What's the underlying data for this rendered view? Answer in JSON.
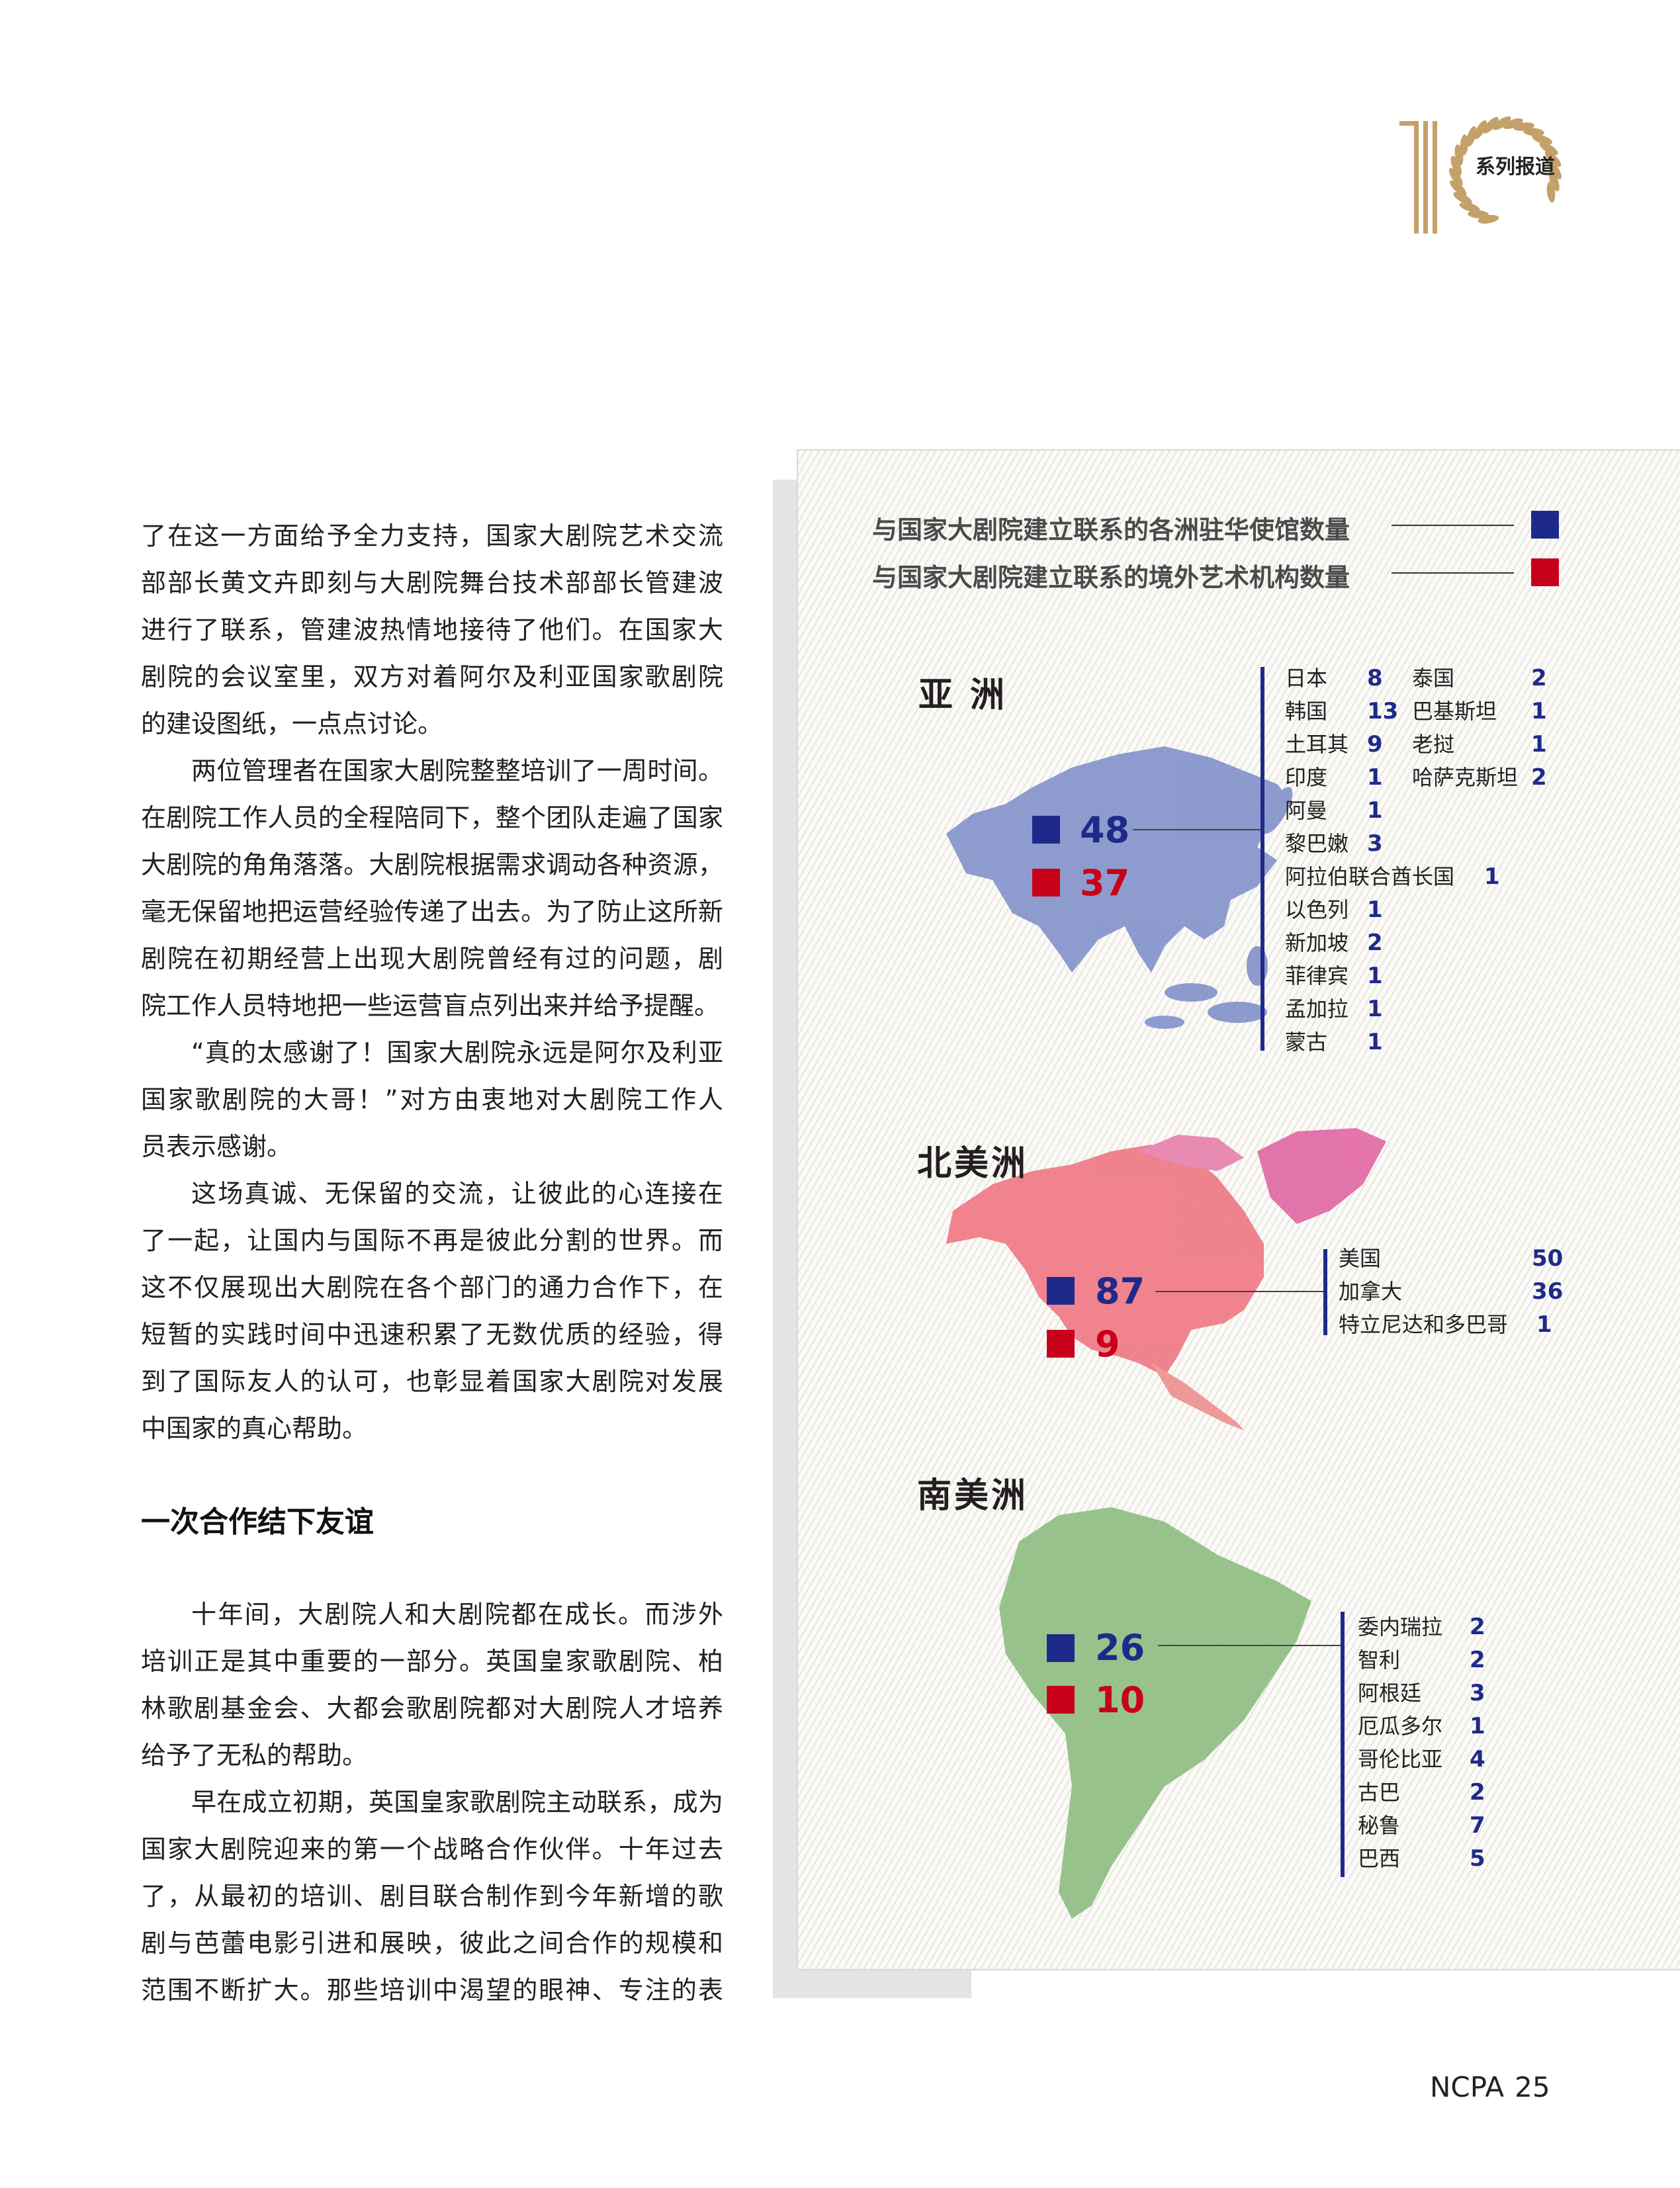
{
  "logo": {
    "text": "系列报道",
    "color": "#c4a06a"
  },
  "article": {
    "block_a": [
      {
        "indent": false,
        "lines": [
          "了在这一方面给予全力支持，国家大剧院艺术交流",
          "部部长黄文卉即刻与大剧院舞台技术部部长管建波",
          "进行了联系，管建波热情地接待了他们。在国家大",
          "剧院的会议室里，双方对着阿尔及利亚国家歌剧院",
          "的建设图纸，一点点讨论。"
        ]
      },
      {
        "indent": true,
        "lines": [
          "两位管理者在国家大剧院整整培训了一周时间。",
          "在剧院工作人员的全程陪同下，整个团队走遍了国家",
          "大剧院的角角落落。大剧院根据需求调动各种资源，",
          "毫无保留地把运营经验传递了出去。为了防止这所新",
          "剧院在初期经营上出现大剧院曾经有过的问题，剧",
          "院工作人员特地把一些运营盲点列出来并给予提醒。"
        ]
      },
      {
        "indent": true,
        "lines": [
          "“真的太感谢了！国家大剧院永远是阿尔及利亚",
          "国家歌剧院的大哥！”对方由衷地对大剧院工作人",
          "员表示感谢。"
        ]
      },
      {
        "indent": true,
        "lines": [
          "这场真诚、无保留的交流，让彼此的心连接在",
          "了一起，让国内与国际不再是彼此分割的世界。而",
          "这不仅展现出大剧院在各个部门的通力合作下，在",
          "短暂的实践时间中迅速积累了无数优质的经验，得",
          "到了国际友人的认可，也彰显着国家大剧院对发展",
          "中国家的真心帮助。"
        ]
      }
    ],
    "heading": "一次合作结下友谊",
    "block_b": [
      {
        "indent": true,
        "lines": [
          "十年间，大剧院人和大剧院都在成长。而涉外",
          "培训正是其中重要的一部分。英国皇家歌剧院、柏",
          "林歌剧基金会、大都会歌剧院都对大剧院人才培养",
          "给予了无私的帮助。"
        ]
      },
      {
        "indent": true,
        "continues": true,
        "lines": [
          "早在成立初期，英国皇家歌剧院主动联系，成为",
          "国家大剧院迎来的第一个战略合作伙伴。十年过去",
          "了，从最初的培训、剧目联合制作到今年新增的歌",
          "剧与芭蕾电影引进和展映，彼此之间合作的规模和",
          "范围不断扩大。那些培训中渴望的眼神、专注的表"
        ]
      }
    ]
  },
  "infographic": {
    "legend": [
      {
        "label": "与国家大剧院建立联系的各洲驻华使馆数量",
        "color": "#1e2a8a"
      },
      {
        "label": "与国家大剧院建立联系的境外艺术机构数量",
        "color": "#c8001a"
      }
    ],
    "regions": {
      "asia": {
        "name": "亚 洲",
        "title_color": "#3d4d9e",
        "map_color": "#7484c4",
        "embassies": "48",
        "institutions": "37",
        "columns": [
          [
            {
              "name": "日本",
              "count": "8"
            },
            {
              "name": "韩国",
              "count": "13"
            },
            {
              "name": "土耳其",
              "count": "9"
            },
            {
              "name": "印度",
              "count": "1"
            },
            {
              "name": "阿曼",
              "count": "1"
            },
            {
              "name": "黎巴嫩",
              "count": "3"
            },
            {
              "name": "阿拉伯联合酋长国",
              "count": "1"
            },
            {
              "name": "以色列",
              "count": "1"
            },
            {
              "name": "新加坡",
              "count": "2"
            },
            {
              "name": "菲律宾",
              "count": "1"
            },
            {
              "name": "孟加拉",
              "count": "1"
            },
            {
              "name": "蒙古",
              "count": "1"
            }
          ],
          [
            {
              "name": "泰国",
              "count": "2"
            },
            {
              "name": "巴基斯坦",
              "count": "1"
            },
            {
              "name": "老挝",
              "count": "1"
            },
            {
              "name": "哈萨克斯坦",
              "count": "2"
            }
          ]
        ]
      },
      "north_america": {
        "name": "北美洲",
        "title_color": "#e0457f",
        "map_color": "#ee6f7c",
        "embassies": "87",
        "institutions": "9",
        "columns": [
          [
            {
              "name": "美国",
              "count": "50"
            },
            {
              "name": "加拿大",
              "count": "36"
            },
            {
              "name": "特立尼达和多巴哥",
              "count": "1"
            }
          ]
        ]
      },
      "south_america": {
        "name": "南美洲",
        "title_color": "#5b9a5b",
        "map_color": "#7fb572",
        "embassies": "26",
        "institutions": "10",
        "columns": [
          [
            {
              "name": "委内瑞拉",
              "count": "2"
            },
            {
              "name": "智利",
              "count": "2"
            },
            {
              "name": "阿根廷",
              "count": "3"
            },
            {
              "name": "厄瓜多尔",
              "count": "1"
            },
            {
              "name": "哥伦比亚",
              "count": "4"
            },
            {
              "name": "古巴",
              "count": "2"
            },
            {
              "name": "秘鲁",
              "count": "7"
            },
            {
              "name": "巴西",
              "count": "5"
            }
          ]
        ]
      }
    }
  },
  "footer": {
    "publication": "NCPA",
    "page": "25"
  }
}
